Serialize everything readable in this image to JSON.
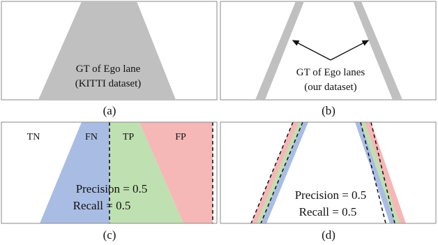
{
  "panels": [
    {
      "caption": "(a)",
      "annotation_line1": "GT of Ego lane",
      "annotation_line2": "(KITTI dataset)"
    },
    {
      "caption": "(b)",
      "annotation_line1": "GT of Ego lanes",
      "annotation_line2": "(our dataset)"
    },
    {
      "caption": "(c)",
      "region_labels": [
        "TN",
        "FN",
        "TP",
        "FP"
      ],
      "metric_precision": "Precision = 0.5",
      "metric_recall": "Recall = 0.5"
    },
    {
      "caption": "(d)",
      "metric_precision": "Precision = 0.5",
      "metric_recall": "Recall = 0.5"
    }
  ],
  "colors": {
    "gt_gray": "#c0c0c0",
    "fn_blue": "#a9bde4",
    "tp_green": "#bfe0b0",
    "fp_red": "#f6b7b7",
    "border": "#8a8a8a",
    "dashed": "#111111"
  }
}
